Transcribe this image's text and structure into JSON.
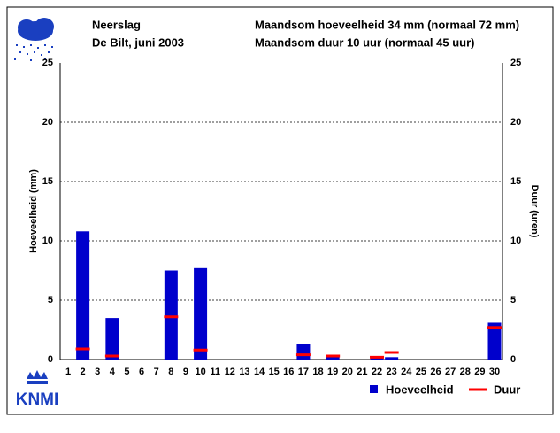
{
  "title": "Neerslag",
  "subtitle": "De Bilt, juni 2003",
  "summary": [
    "Maandsom hoeveelheid  34 mm (normaal 72 mm)",
    "Maandsom duur  10 uur (normaal 45 uur)"
  ],
  "logo": "KNMI",
  "chart_data": {
    "type": "bar",
    "categories": [
      "1",
      "2",
      "3",
      "4",
      "5",
      "6",
      "7",
      "8",
      "9",
      "10",
      "11",
      "12",
      "13",
      "14",
      "15",
      "16",
      "17",
      "18",
      "19",
      "20",
      "21",
      "22",
      "23",
      "24",
      "25",
      "26",
      "27",
      "28",
      "29",
      "30"
    ],
    "series": [
      {
        "name": "Hoeveelheid",
        "color": "#0000cc",
        "values": [
          null,
          10.8,
          null,
          3.5,
          null,
          null,
          null,
          7.5,
          null,
          7.7,
          null,
          null,
          null,
          null,
          null,
          null,
          1.3,
          null,
          0.2,
          null,
          null,
          0.2,
          0.2,
          null,
          null,
          null,
          null,
          null,
          null,
          3.1
        ]
      },
      {
        "name": "Duur",
        "color": "#ff0000",
        "axis": "y2",
        "values": [
          null,
          0.9,
          null,
          0.3,
          null,
          null,
          null,
          3.6,
          null,
          0.8,
          null,
          null,
          null,
          null,
          null,
          null,
          0.4,
          null,
          0.3,
          null,
          null,
          0.2,
          0.6,
          null,
          null,
          null,
          null,
          null,
          null,
          2.7
        ]
      }
    ],
    "ylabel": "Hoeveelheid (mm)",
    "y2label": "Duur (uren)",
    "ylim": [
      0,
      25
    ],
    "yticks": [
      0,
      5,
      10,
      15,
      20,
      25
    ],
    "y2lim": [
      0,
      25
    ],
    "y2ticks": [
      0,
      5,
      10,
      15,
      20,
      25
    ],
    "grid": true
  }
}
